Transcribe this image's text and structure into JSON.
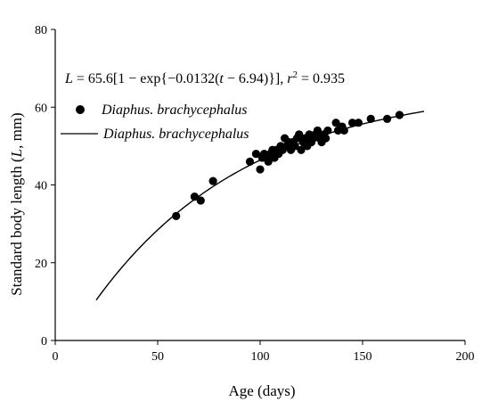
{
  "chart_data": {
    "type": "scatter",
    "xlabel": "Age (days)",
    "ylabel_parts": [
      "Standard body length (",
      "L",
      ", mm)"
    ],
    "xlim": [
      0,
      200
    ],
    "ylim": [
      0,
      80
    ],
    "x_ticks": [
      0,
      50,
      100,
      150,
      200
    ],
    "y_ticks": [
      0,
      20,
      40,
      60,
      80
    ],
    "grid": false,
    "legend_position": "top-left",
    "equation": {
      "lhs": "L",
      "part1": " = 65.6[1 − exp{−0.0132(",
      "t": "t",
      "part2": " − 6.94)}], ",
      "r": "r",
      "r_sup": "2",
      "part3": " = 0.935"
    },
    "series": [
      {
        "name": "Diaphus. brachycephalus",
        "kind": "points",
        "marker": "filled-circle",
        "color": "#000000",
        "points": [
          [
            59,
            32
          ],
          [
            68,
            37
          ],
          [
            71,
            36
          ],
          [
            77,
            41
          ],
          [
            95,
            46
          ],
          [
            98,
            48
          ],
          [
            100,
            44
          ],
          [
            101,
            47
          ],
          [
            102,
            48
          ],
          [
            103,
            47
          ],
          [
            104,
            46
          ],
          [
            105,
            48
          ],
          [
            106,
            49
          ],
          [
            107,
            47
          ],
          [
            108,
            49
          ],
          [
            109,
            48
          ],
          [
            110,
            50
          ],
          [
            111,
            49
          ],
          [
            112,
            52
          ],
          [
            113,
            50
          ],
          [
            114,
            51
          ],
          [
            115,
            49
          ],
          [
            116,
            51
          ],
          [
            117,
            50
          ],
          [
            118,
            52
          ],
          [
            119,
            53
          ],
          [
            120,
            49
          ],
          [
            121,
            51
          ],
          [
            122,
            52
          ],
          [
            123,
            50
          ],
          [
            124,
            53
          ],
          [
            125,
            51
          ],
          [
            126,
            52
          ],
          [
            127,
            53
          ],
          [
            128,
            54
          ],
          [
            129,
            52
          ],
          [
            130,
            51
          ],
          [
            131,
            53
          ],
          [
            132,
            52
          ],
          [
            133,
            54
          ],
          [
            137,
            56
          ],
          [
            138,
            54
          ],
          [
            140,
            55
          ],
          [
            141,
            54
          ],
          [
            145,
            56
          ],
          [
            148,
            56
          ],
          [
            154,
            57
          ],
          [
            162,
            57
          ],
          [
            168,
            58
          ]
        ]
      },
      {
        "name": "Diaphus. brachycephalus",
        "kind": "curve",
        "color": "#000000",
        "function": "L = 65.6*(1 - exp(-0.0132*(t - 6.94)))",
        "x_range": [
          20,
          180
        ]
      }
    ]
  }
}
